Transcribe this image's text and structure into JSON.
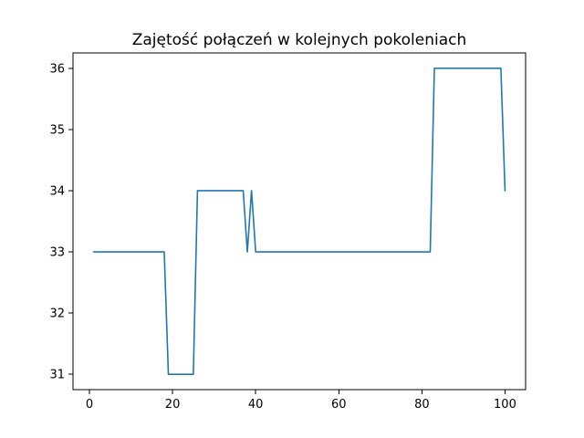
{
  "chart_data": {
    "type": "line",
    "title": "Zajętość połączeń w kolejnych pokoleniach",
    "xlabel": "",
    "ylabel": "",
    "xlim": [
      -3.95,
      104.95
    ],
    "ylim": [
      30.75,
      36.25
    ],
    "xticks": [
      0,
      20,
      40,
      60,
      80,
      100
    ],
    "xtick_labels": [
      "0",
      "20",
      "40",
      "60",
      "80",
      "100"
    ],
    "yticks": [
      31,
      32,
      33,
      34,
      35,
      36
    ],
    "ytick_labels": [
      "31",
      "32",
      "33",
      "34",
      "35",
      "36"
    ],
    "grid": false,
    "legend": "none",
    "series": [
      {
        "color": "#1f77b4",
        "points": [
          [
            1,
            33
          ],
          [
            18,
            33
          ],
          [
            19,
            31
          ],
          [
            25,
            31
          ],
          [
            26,
            34
          ],
          [
            37,
            34
          ],
          [
            38,
            33
          ],
          [
            39,
            34
          ],
          [
            40,
            33
          ],
          [
            82,
            33
          ],
          [
            83,
            36
          ],
          [
            99,
            36
          ],
          [
            100,
            34
          ]
        ]
      }
    ]
  }
}
